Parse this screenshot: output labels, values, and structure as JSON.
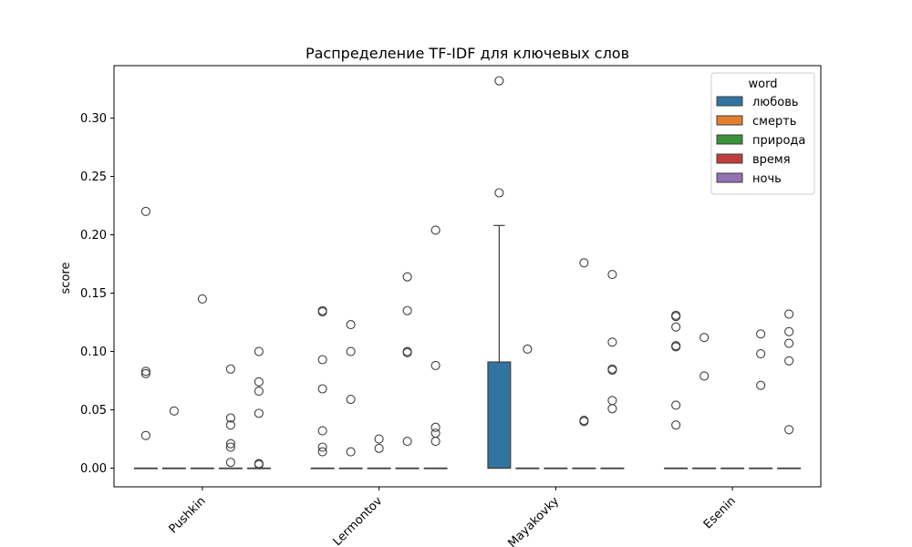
{
  "chart_data": {
    "type": "box",
    "title": "Распределение TF-IDF для ключевых слов",
    "xlabel": "",
    "ylabel": "score",
    "ylim": [
      -0.016,
      0.345
    ],
    "yticks": [
      0.0,
      0.05,
      0.1,
      0.15,
      0.2,
      0.25,
      0.3
    ],
    "ytick_labels": [
      "0.00",
      "0.05",
      "0.10",
      "0.15",
      "0.20",
      "0.25",
      "0.30"
    ],
    "categories": [
      "Pushkin",
      "Lermontov",
      "Mayakovky",
      "Esenin"
    ],
    "legend": {
      "title": "word",
      "placement": "top-right"
    },
    "series": [
      {
        "name": "любовь",
        "color": "#3274a1",
        "boxes": [
          {
            "min": 0,
            "q1": 0,
            "median": 0,
            "q3": 0,
            "max": 0,
            "outliers": [
              0.22,
              0.083,
              0.081,
              0.028
            ]
          },
          {
            "min": 0,
            "q1": 0,
            "median": 0,
            "q3": 0,
            "max": 0,
            "outliers": [
              0.135,
              0.134,
              0.093,
              0.068,
              0.032,
              0.018,
              0.014
            ]
          },
          {
            "min": 0,
            "q1": 0,
            "median": 0,
            "q3": 0.091,
            "max": 0.208,
            "outliers": [
              0.332,
              0.236
            ]
          },
          {
            "min": 0,
            "q1": 0,
            "median": 0,
            "q3": 0,
            "max": 0,
            "outliers": [
              0.131,
              0.13,
              0.121,
              0.105,
              0.104,
              0.054,
              0.037
            ]
          }
        ]
      },
      {
        "name": "смерть",
        "color": "#e1812c",
        "boxes": [
          {
            "min": 0,
            "q1": 0,
            "median": 0,
            "q3": 0,
            "max": 0,
            "outliers": [
              0.049
            ]
          },
          {
            "min": 0,
            "q1": 0,
            "median": 0,
            "q3": 0,
            "max": 0,
            "outliers": [
              0.123,
              0.1,
              0.059,
              0.014
            ]
          },
          {
            "min": 0,
            "q1": 0,
            "median": 0,
            "q3": 0,
            "max": 0,
            "outliers": [
              0.102
            ]
          },
          {
            "min": 0,
            "q1": 0,
            "median": 0,
            "q3": 0,
            "max": 0,
            "outliers": [
              0.112,
              0.079
            ]
          }
        ]
      },
      {
        "name": "природа",
        "color": "#3a923a",
        "boxes": [
          {
            "min": 0,
            "q1": 0,
            "median": 0,
            "q3": 0,
            "max": 0,
            "outliers": [
              0.145
            ]
          },
          {
            "min": 0,
            "q1": 0,
            "median": 0,
            "q3": 0,
            "max": 0,
            "outliers": [
              0.025,
              0.017
            ]
          },
          {
            "min": 0,
            "q1": 0,
            "median": 0,
            "q3": 0,
            "max": 0,
            "outliers": []
          },
          {
            "min": 0,
            "q1": 0,
            "median": 0,
            "q3": 0,
            "max": 0,
            "outliers": []
          }
        ]
      },
      {
        "name": "время",
        "color": "#c03d3e",
        "boxes": [
          {
            "min": 0,
            "q1": 0,
            "median": 0,
            "q3": 0,
            "max": 0,
            "outliers": [
              0.085,
              0.043,
              0.037,
              0.021,
              0.018,
              0.005
            ]
          },
          {
            "min": 0,
            "q1": 0,
            "median": 0,
            "q3": 0,
            "max": 0,
            "outliers": [
              0.164,
              0.135,
              0.1,
              0.099,
              0.023
            ]
          },
          {
            "min": 0,
            "q1": 0,
            "median": 0,
            "q3": 0,
            "max": 0,
            "outliers": [
              0.176,
              0.041,
              0.04
            ]
          },
          {
            "min": 0,
            "q1": 0,
            "median": 0,
            "q3": 0,
            "max": 0,
            "outliers": [
              0.115,
              0.098,
              0.071
            ]
          }
        ]
      },
      {
        "name": "ночь",
        "color": "#9372b2",
        "boxes": [
          {
            "min": 0,
            "q1": 0,
            "median": 0,
            "q3": 0,
            "max": 0,
            "outliers": [
              0.1,
              0.074,
              0.066,
              0.047,
              0.004,
              0.003
            ]
          },
          {
            "min": 0,
            "q1": 0,
            "median": 0,
            "q3": 0,
            "max": 0,
            "outliers": [
              0.204,
              0.088,
              0.035,
              0.03,
              0.023
            ]
          },
          {
            "min": 0,
            "q1": 0,
            "median": 0,
            "q3": 0,
            "max": 0,
            "outliers": [
              0.166,
              0.108,
              0.085,
              0.084,
              0.058,
              0.051
            ]
          },
          {
            "min": 0,
            "q1": 0,
            "median": 0,
            "q3": 0,
            "max": 0,
            "outliers": [
              0.132,
              0.117,
              0.107,
              0.092,
              0.033
            ]
          }
        ]
      }
    ]
  }
}
